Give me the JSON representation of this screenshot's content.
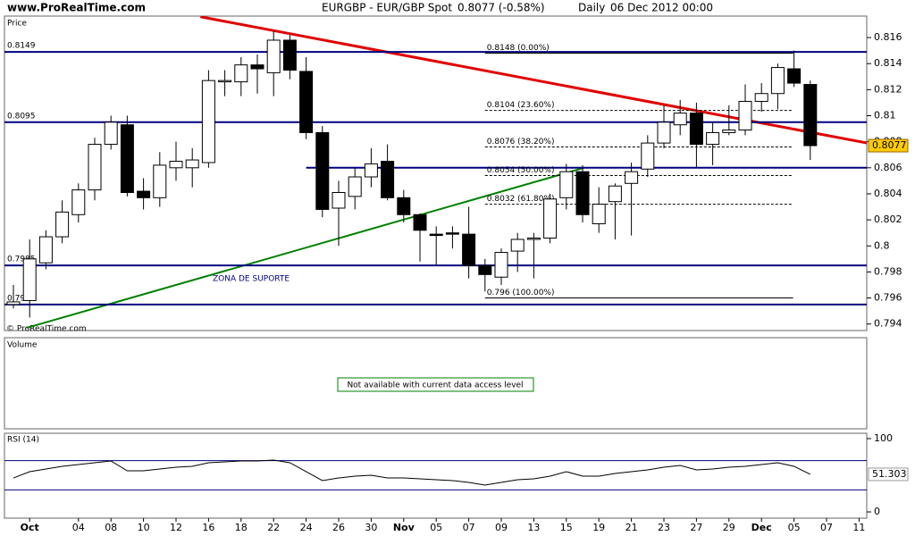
{
  "header": {
    "site": "www.ProRealTime.com",
    "instrument": "EURGBP - EUR/GBP Spot",
    "quote": "0.8077 (-0.58%)",
    "period": "Daily",
    "date": "06 Dec 2012 00:00"
  },
  "chart_data": [
    {
      "type": "candlestick",
      "title": "Price",
      "watermark": "© ProRealTime.com",
      "categories": [
        null,
        "Oct",
        null,
        null,
        "04",
        null,
        "08",
        null,
        "10",
        null,
        "12",
        null,
        "16",
        null,
        "18",
        null,
        "22",
        null,
        "24",
        null,
        "26",
        null,
        "30",
        null,
        "Nov",
        null,
        "05",
        null,
        "07",
        null,
        "09",
        null,
        "13",
        null,
        "15",
        null,
        "19",
        null,
        "21",
        null,
        "23",
        null,
        "27",
        null,
        "29",
        null,
        "Dec",
        null,
        "05",
        null,
        "07",
        null,
        "11"
      ],
      "open": [
        0.7955,
        0.7958,
        0.7987,
        0.8007,
        0.8024,
        0.8043,
        0.8078,
        0.8093,
        0.8042,
        0.8037,
        0.806,
        0.806,
        0.8064,
        0.8126,
        0.8126,
        0.8139,
        0.8133,
        0.8158,
        0.8134,
        0.8087,
        0.8029,
        0.8038,
        0.8053,
        0.8065,
        0.8037,
        0.8024,
        0.8009,
        0.801,
        0.8009,
        0.7985,
        0.7976,
        0.7996,
        0.8005,
        0.8006,
        0.8037,
        0.8057,
        0.8017,
        0.8034,
        0.8048,
        0.8059,
        0.8079,
        0.8093,
        0.8102,
        0.8078,
        0.8087,
        0.8089,
        0.8111,
        0.8117,
        0.8136,
        0.8124,
        null,
        null,
        null
      ],
      "high": [
        0.797,
        0.8005,
        0.8012,
        0.8035,
        0.8048,
        0.8083,
        0.81,
        0.81,
        0.8052,
        0.8072,
        0.808,
        0.8075,
        0.8135,
        0.8135,
        0.8145,
        0.8147,
        0.8165,
        0.8162,
        0.8145,
        0.8092,
        0.805,
        0.806,
        0.8075,
        0.8078,
        0.8043,
        0.8025,
        0.8015,
        0.8015,
        0.803,
        0.799,
        0.7998,
        0.801,
        0.801,
        0.804,
        0.8063,
        0.8062,
        0.8045,
        0.8048,
        0.8064,
        0.8085,
        0.8108,
        0.8112,
        0.811,
        0.8095,
        0.8108,
        0.8124,
        0.8125,
        0.814,
        0.815,
        0.8127,
        null,
        null,
        null
      ],
      "low": [
        0.7952,
        0.7945,
        0.7982,
        0.8002,
        0.8018,
        0.8035,
        0.8074,
        0.8038,
        0.8028,
        0.803,
        0.805,
        0.8045,
        0.806,
        0.8115,
        0.8115,
        0.8117,
        0.8115,
        0.8128,
        0.8082,
        0.8022,
        0.8,
        0.8028,
        0.8045,
        0.8035,
        0.8018,
        0.7988,
        0.7985,
        0.7998,
        0.7975,
        0.7965,
        0.797,
        0.798,
        0.7975,
        0.8002,
        0.8028,
        0.8018,
        0.801,
        0.8005,
        0.8008,
        0.8053,
        0.8075,
        0.8085,
        0.806,
        0.8062,
        0.8085,
        0.8085,
        0.8103,
        0.8105,
        0.8122,
        0.8066,
        null,
        null,
        null
      ],
      "close": [
        0.7957,
        0.799,
        0.8007,
        0.8026,
        0.8043,
        0.8078,
        0.8095,
        0.8041,
        0.8037,
        0.8062,
        0.8065,
        0.8066,
        0.8127,
        0.8127,
        0.8139,
        0.8136,
        0.8158,
        0.8135,
        0.8087,
        0.8028,
        0.8041,
        0.8053,
        0.8063,
        0.8037,
        0.8024,
        0.8012,
        0.8008,
        0.8009,
        0.7985,
        0.7978,
        0.7995,
        0.8005,
        0.8006,
        0.8036,
        0.8057,
        0.8024,
        0.8032,
        0.8046,
        0.8057,
        0.8079,
        0.8095,
        0.8102,
        0.8078,
        0.8087,
        0.8089,
        0.8111,
        0.8117,
        0.8137,
        0.8125,
        0.8077,
        null,
        null,
        null
      ],
      "up_color": "#ffffff",
      "down_color": "#000000",
      "ylim": [
        0.7935,
        0.81765
      ],
      "yticks": [
        0.794,
        0.796,
        0.798,
        0.8,
        0.802,
        0.804,
        0.806,
        0.808,
        0.81,
        0.812,
        0.814,
        0.816
      ],
      "levels": [
        0.8149,
        0.8095,
        0.7985,
        0.7955
      ],
      "level_color": "#000080",
      "support_line": 0.806,
      "fibonacci": [
        {
          "value": 0.8148,
          "label": "0.8148 (0.00%)"
        },
        {
          "value": 0.8104,
          "label": "0.8104 (23.60%)"
        },
        {
          "value": 0.8076,
          "label": "0.8076 (38.20%)"
        },
        {
          "value": 0.8054,
          "label": "0.8054 (50.00%)"
        },
        {
          "value": 0.8032,
          "label": "0.8032 (61.80%)"
        },
        {
          "value": 0.796,
          "label": "0.796 (100.00%)"
        }
      ],
      "trendlines": [
        {
          "color": "#e00000",
          "points": [
            [
              11.5,
              0.8176
            ],
            [
              52.5,
              0.8079
            ]
          ]
        },
        {
          "color": "#008000",
          "points": [
            [
              0.8,
              0.7937
            ],
            [
              35.1,
              0.806
            ]
          ]
        }
      ],
      "annotation": "ZONA DE SUPORTE"
    },
    {
      "type": "volume",
      "title": "Volume",
      "message": "Not available with current data access level"
    },
    {
      "type": "line",
      "title": "RSI (14)",
      "color": "#000000",
      "values": [
        46.3,
        54.9,
        58.5,
        62.2,
        64.6,
        67.1,
        69.5,
        56.1,
        56.1,
        58.5,
        61.0,
        62.2,
        67.1,
        68.3,
        69.5,
        69.5,
        70.7,
        67.1,
        54.9,
        42.7,
        46.3,
        48.8,
        50.0,
        46.3,
        46.3,
        45.1,
        43.9,
        42.7,
        40.2,
        36.6,
        40.2,
        43.9,
        45.1,
        48.8,
        54.9,
        48.8,
        48.8,
        52.4,
        54.9,
        57.3,
        61.0,
        63.4,
        57.3,
        58.5,
        61.0,
        62.2,
        64.6,
        67.1,
        62.2,
        51.303,
        null,
        null,
        null
      ],
      "ylim": [
        -8.5,
        107.3
      ],
      "yticks": [
        0,
        100
      ],
      "levels": [
        70,
        30
      ],
      "level_color": "#000080"
    }
  ]
}
